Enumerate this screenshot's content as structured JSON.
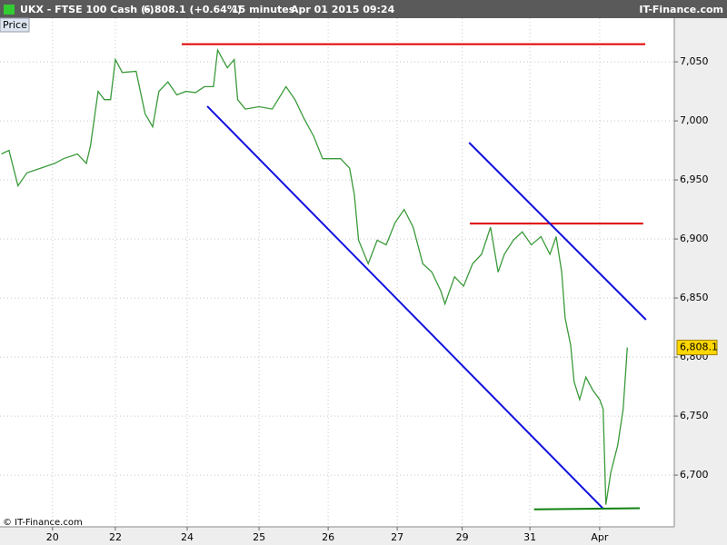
{
  "chart_data": {
    "type": "line",
    "title": "UKX - FTSE 100 Cash (-)",
    "price_text": "6,808.1 (+0.64%)",
    "interval": "15 minutes",
    "datetime": "Apr 01 2015 09:24",
    "brand": "IT-Finance.com",
    "copyright": "© IT-Finance.com",
    "last_price": {
      "value": 6808.1,
      "label": "6,808.1"
    },
    "grid": true,
    "xlim": [
      -0.76,
      9.0
    ],
    "ylim": [
      6656.2,
      7087
    ],
    "xticks": [
      {
        "value": 0,
        "label": "20"
      },
      {
        "value": 0.91,
        "label": "22"
      },
      {
        "value": 1.95,
        "label": "24"
      },
      {
        "value": 2.99,
        "label": "25"
      },
      {
        "value": 3.99,
        "label": "26"
      },
      {
        "value": 4.99,
        "label": "27"
      },
      {
        "value": 5.93,
        "label": "29"
      },
      {
        "value": 6.91,
        "label": "31"
      },
      {
        "value": 7.92,
        "label": "Apr"
      }
    ],
    "yticks": [
      {
        "value": 6700,
        "label": "6,700"
      },
      {
        "value": 6750,
        "label": "6,750"
      },
      {
        "value": 6800,
        "label": "6,800"
      },
      {
        "value": 6850,
        "label": "6,850"
      },
      {
        "value": 6900,
        "label": "6,900"
      },
      {
        "value": 6950,
        "label": "6,950"
      },
      {
        "value": 7000,
        "label": "7,000"
      },
      {
        "value": 7050,
        "label": "7,050"
      }
    ],
    "x": [
      -0.74,
      -0.63,
      -0.5,
      -0.37,
      -0.17,
      0.03,
      0.16,
      0.36,
      0.49,
      0.55,
      0.66,
      0.75,
      0.84,
      0.91,
      1.01,
      1.21,
      1.34,
      1.45,
      1.54,
      1.67,
      1.8,
      1.93,
      2.07,
      2.2,
      2.33,
      2.39,
      2.53,
      2.63,
      2.68,
      2.79,
      2.99,
      3.18,
      3.38,
      3.51,
      3.64,
      3.78,
      3.91,
      4.04,
      4.17,
      4.3,
      4.37,
      4.43,
      4.57,
      4.7,
      4.83,
      4.96,
      5.09,
      5.22,
      5.36,
      5.49,
      5.62,
      5.68,
      5.82,
      5.95,
      6.08,
      6.21,
      6.34,
      6.45,
      6.54,
      6.67,
      6.8,
      6.93,
      7.07,
      7.2,
      7.29,
      7.37,
      7.42,
      7.5,
      7.55,
      7.63,
      7.72,
      7.82,
      7.92,
      7.97,
      8.01,
      8.08,
      8.18,
      8.26,
      8.32
    ],
    "series": [
      {
        "name": "Price",
        "color": "#3a9a3a",
        "values": [
          6972,
          6975,
          6945,
          6956,
          6960,
          6964,
          6968,
          6972,
          6964,
          6979,
          7025,
          7018,
          7018,
          7052,
          7041,
          7042,
          7006,
          6995,
          7025,
          7033,
          7022,
          7025,
          7024,
          7029,
          7029,
          7060,
          7045,
          7052,
          7018,
          7010,
          7012,
          7010,
          7029,
          7018,
          7002,
          6987,
          6968,
          6968,
          6968,
          6960,
          6937,
          6899,
          6879,
          6899,
          6895,
          6914,
          6925,
          6910,
          6879,
          6872,
          6856,
          6845,
          6868,
          6860,
          6879,
          6887,
          6910,
          6872,
          6887,
          6899,
          6906,
          6895,
          6902,
          6887,
          6902,
          6872,
          6833,
          6810,
          6779,
          6764,
          6783,
          6772,
          6764,
          6756,
          6675,
          6702,
          6725,
          6756,
          6808.1
        ]
      }
    ],
    "trend_lines": [
      {
        "color": "#e00000",
        "x": [
          1.87,
          8.58
        ],
        "y": [
          7065,
          7065
        ]
      },
      {
        "color": "#e00000",
        "x": [
          6.04,
          8.55
        ],
        "y": [
          6913,
          6913
        ]
      },
      {
        "color": "#1010e0",
        "x": [
          2.24,
          7.97
        ],
        "y": [
          7012.4,
          6671.6
        ]
      },
      {
        "color": "#1010e0",
        "x": [
          6.03,
          8.59
        ],
        "y": [
          6981.6,
          6831.6
        ]
      },
      {
        "color": "#108010",
        "x": [
          6.97,
          8.5
        ],
        "y": [
          6671,
          6672
        ]
      }
    ]
  }
}
